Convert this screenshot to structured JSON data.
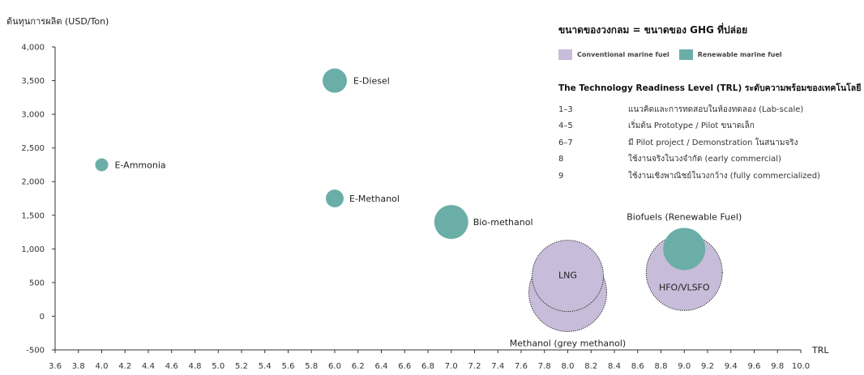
{
  "chart_data": {
    "type": "bubble",
    "ylabel": "ต้นทุนการผลิต (USD/Ton)",
    "xlabel": "TRL",
    "xlim": [
      3.6,
      10.0
    ],
    "ylim": [
      -500,
      4000
    ],
    "xticks": [
      3.6,
      3.8,
      4.0,
      4.2,
      4.4,
      4.6,
      4.8,
      5.0,
      5.2,
      5.4,
      5.6,
      5.8,
      6.0,
      6.2,
      6.4,
      6.6,
      6.8,
      7.0,
      7.2,
      7.4,
      7.6,
      7.8,
      8.0,
      8.2,
      8.4,
      8.6,
      8.8,
      9.0,
      9.2,
      9.4,
      9.6,
      9.8,
      10.0
    ],
    "xtick_labels": [
      "3.6",
      "3.8",
      "4.0",
      "4.2",
      "4.4",
      "4.6",
      "4.8",
      "5.0",
      "5.2",
      "5.4",
      "5.6",
      "5.8",
      "6.0",
      "6.2",
      "6.4",
      "6.6",
      "6.8",
      "7.0",
      "7.2",
      "7.4",
      "7.6",
      "7.8",
      "8.0",
      "8.2",
      "8.4",
      "8.6",
      "8.8",
      "9.0",
      "9.2",
      "9.4",
      "9.6",
      "9.8",
      "10.0"
    ],
    "yticks": [
      -500,
      0,
      500,
      1000,
      1500,
      2000,
      2500,
      3000,
      3500,
      4000
    ],
    "ytick_labels": [
      "-500",
      "0",
      "500",
      "1,000",
      "1,500",
      "2,000",
      "2,500",
      "3,000",
      "3,500",
      "4,000"
    ],
    "legend_title": "ขนาดของวงกลม = ขนาดของ GHG ที่ปล่อย",
    "series": [
      {
        "name": "Conventional marine fuel",
        "color": "#c7bcd9",
        "points": [
          {
            "label": "Methanol (grey methanol)",
            "x": 8.0,
            "y": 350,
            "size": 48
          },
          {
            "label": "LNG",
            "x": 8.0,
            "y": 600,
            "size": 44
          },
          {
            "label": "HFO/VLSFO",
            "x": 9.0,
            "y": 650,
            "size": 47
          }
        ]
      },
      {
        "name": "Renewable marine fuel",
        "color": "#6aaea7",
        "points": [
          {
            "label": "E-Diesel",
            "x": 6.0,
            "y": 3500,
            "size": 15
          },
          {
            "label": "E-Ammonia",
            "x": 4.0,
            "y": 2250,
            "size": 8
          },
          {
            "label": "E-Methanol",
            "x": 6.0,
            "y": 1750,
            "size": 11
          },
          {
            "label": "Bio-methanol",
            "x": 7.0,
            "y": 1400,
            "size": 21
          },
          {
            "label": "Biofuels (Renewable Fuel)",
            "x": 9.0,
            "y": 1000,
            "size": 26
          }
        ]
      }
    ]
  },
  "trl": {
    "title": "The Technology Readiness Level (TRL) ระดับความพร้อมของเทคโนโลยี",
    "levels": [
      {
        "level": "1–3",
        "description": "แนวคิดและการทดสอบในห้องทดลอง (Lab-scale)"
      },
      {
        "level": "4–5",
        "description": "เริ่มต้น Prototype / Pilot ขนาดเล็ก"
      },
      {
        "level": "6–7",
        "description": "มี Pilot project / Demonstration ในสนามจริง"
      },
      {
        "level": "8",
        "description": "ใช้งานจริงในวงจำกัด (early commercial)"
      },
      {
        "level": "9",
        "description": "ใช้งานเชิงพาณิชย์ในวงกว้าง (fully commercialized)"
      }
    ]
  }
}
